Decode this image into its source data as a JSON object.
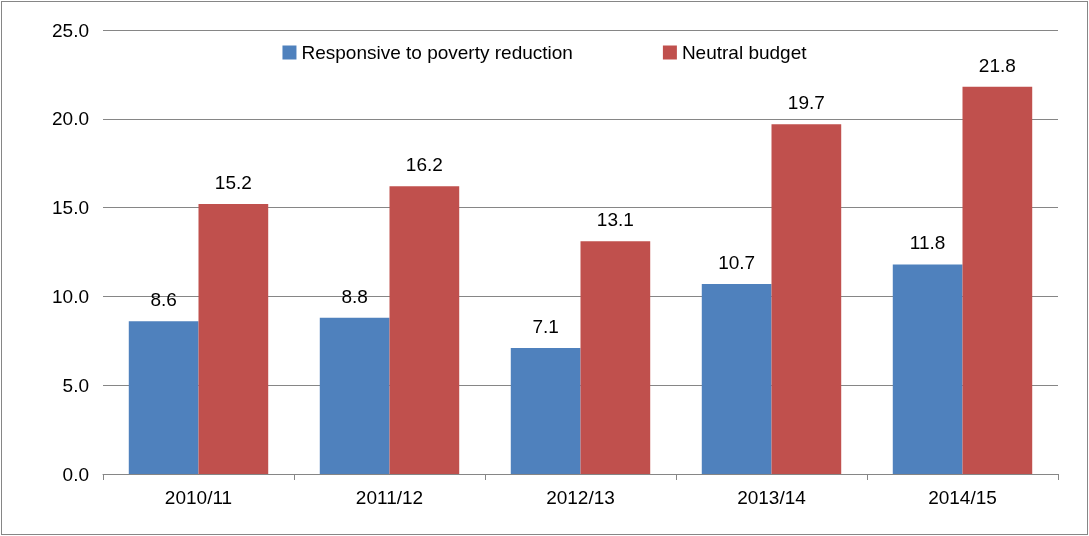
{
  "chart_data": {
    "type": "bar",
    "categories": [
      "2010/11",
      "2011/12",
      "2012/13",
      "2013/14",
      "2014/15"
    ],
    "series": [
      {
        "name": "Responsive to poverty reduction",
        "color": "#4f81bd",
        "values": [
          8.6,
          8.8,
          7.1,
          10.7,
          11.8
        ]
      },
      {
        "name": "Neutral budget",
        "color": "#c0504d",
        "values": [
          15.2,
          16.2,
          13.1,
          19.7,
          21.8
        ]
      }
    ],
    "ylim": [
      0,
      25
    ],
    "yticks": [
      {
        "value": 0,
        "label": "0.0"
      },
      {
        "value": 5,
        "label": "5.0"
      },
      {
        "value": 10,
        "label": "10.0"
      },
      {
        "value": 15,
        "label": "15.0"
      },
      {
        "value": 20,
        "label": "20.0"
      },
      {
        "value": 25,
        "label": "25.0"
      }
    ],
    "grid": "y",
    "legend": "top",
    "data_labels": true
  }
}
